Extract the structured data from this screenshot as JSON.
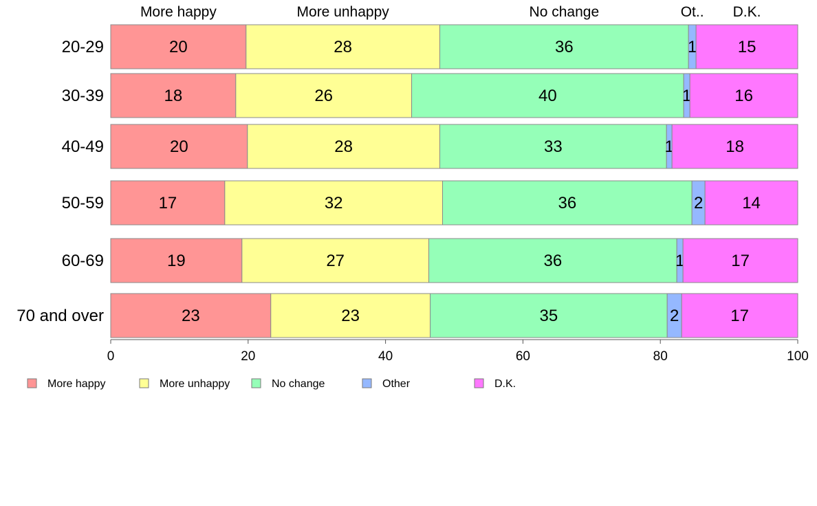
{
  "chart_data": {
    "type": "bar",
    "orientation": "horizontal",
    "stacked": true,
    "title": "",
    "xlabel": "",
    "ylabel": "",
    "xlim": [
      0,
      100
    ],
    "xticks": [
      "0",
      "20",
      "40",
      "60",
      "80",
      "100"
    ],
    "categories": [
      "20-29",
      "30-39",
      "40-49",
      "50-59",
      "60-69",
      "70 and over"
    ],
    "series": [
      {
        "name": "More happy",
        "header": "More happy",
        "color": "#ff9595",
        "values": [
          19.7,
          18.2,
          19.9,
          16.6,
          19.1,
          23.3
        ],
        "labels": [
          "20",
          "18",
          "20",
          "17",
          "19",
          "23"
        ]
      },
      {
        "name": "More unhappy",
        "header": "More unhappy",
        "color": "#ffff95",
        "values": [
          28.2,
          25.6,
          28.0,
          31.7,
          27.2,
          23.2
        ],
        "labels": [
          "28",
          "26",
          "28",
          "32",
          "27",
          "23"
        ]
      },
      {
        "name": "No change",
        "header": "No change",
        "color": "#95ffb8",
        "values": [
          36.2,
          39.6,
          33.0,
          36.3,
          36.1,
          34.5
        ],
        "labels": [
          "36",
          "40",
          "33",
          "36",
          "36",
          "35"
        ]
      },
      {
        "name": "Other",
        "header": "Ot..",
        "color": "#95b8ff",
        "values": [
          1.1,
          0.9,
          0.8,
          1.9,
          0.9,
          2.1
        ],
        "labels": [
          "1",
          "1",
          "1",
          "2",
          "1",
          "2"
        ]
      },
      {
        "name": "D.K.",
        "header": "D.K.",
        "color": "#ff77ff",
        "values": [
          14.8,
          15.7,
          18.3,
          13.5,
          16.7,
          16.9
        ],
        "labels": [
          "15",
          "16",
          "18",
          "14",
          "17",
          "17"
        ]
      }
    ],
    "grid": false,
    "legend": "bottom-left"
  }
}
